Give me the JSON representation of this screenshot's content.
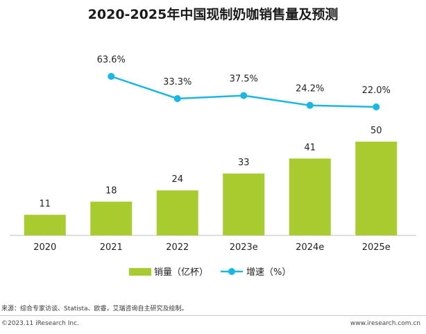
{
  "chart_data": {
    "type": "bar",
    "title": "2020-2025年中国现制奶咖销售量及预测",
    "categories": [
      "2020",
      "2021",
      "2022",
      "2023e",
      "2024e",
      "2025e"
    ],
    "series": [
      {
        "name": "销量（亿杯）",
        "type": "bar",
        "values": [
          11,
          18,
          24,
          33,
          41,
          50
        ],
        "labels": [
          "11",
          "18",
          "24",
          "33",
          "41",
          "50"
        ],
        "color": "#a8cc30"
      },
      {
        "name": "增速（%）",
        "type": "line",
        "values": [
          null,
          63.6,
          33.3,
          37.5,
          24.2,
          22.0
        ],
        "labels": [
          "",
          "63.6%",
          "33.3%",
          "37.5%",
          "24.2%",
          "22.0%"
        ],
        "color": "#1ab6e6"
      }
    ],
    "legend": [
      "销量（亿杯）",
      "增速（%）"
    ],
    "legend_position": "bottom",
    "grid": false
  },
  "footer": {
    "source": "来源：综合专家访谈、Statista、欧睿，艾瑞咨询自主研究及绘制。",
    "copyright": "©2023.11 iResearch Inc.",
    "website": "www.iresearch.com.cn"
  }
}
